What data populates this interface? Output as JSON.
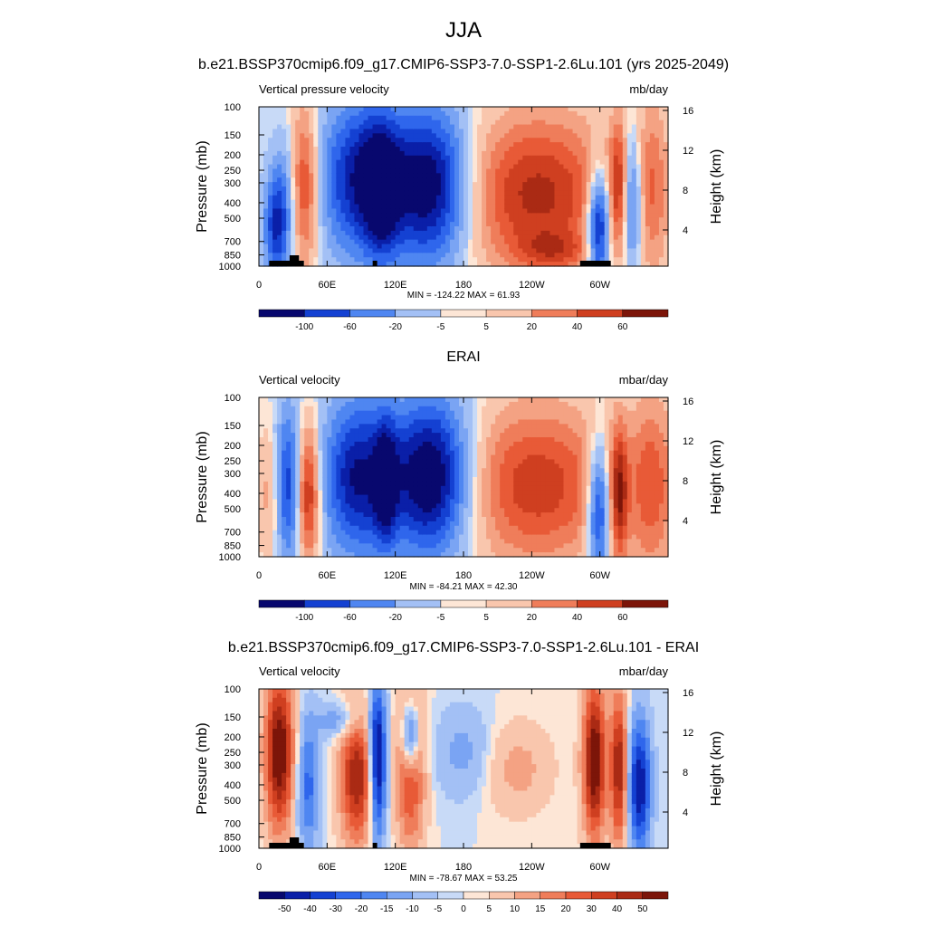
{
  "title": "JJA",
  "colors": {
    "diverging_20": [
      "#08086e",
      "#0a1fa8",
      "#1441d2",
      "#2f66ec",
      "#4f86f1",
      "#7aa4f3",
      "#a3c0f5",
      "#c8daf7",
      "#fde6d6",
      "#f9c6ad",
      "#f4a283",
      "#ef7d5a",
      "#e85a37",
      "#cf3f20",
      "#aa2a14",
      "#7c1509"
    ],
    "land": "#000000"
  },
  "panels": [
    {
      "title": "b.e21.BSSP370cmip6.f09_g17.CMIP6-SSP3-7.0-SSP1-2.6Lu.101 (yrs 2025-2049)",
      "left_label": "Vertical pressure velocity",
      "right_label": "mb/day",
      "minmax": "MIN = -124.22  MAX =  61.93",
      "colorbar_labels": [
        "-100",
        "-60",
        "-20",
        "-5",
        "5",
        "20",
        "40",
        "60"
      ]
    },
    {
      "title": "ERAI",
      "left_label": "Vertical velocity",
      "right_label": "mbar/day",
      "minmax": "MIN = -84.21  MAX = 42.30",
      "colorbar_labels": [
        "-100",
        "-60",
        "-20",
        "-5",
        "5",
        "20",
        "40",
        "60"
      ]
    },
    {
      "title": "b.e21.BSSP370cmip6.f09_g17.CMIP6-SSP3-7.0-SSP1-2.6Lu.101 - ERAI",
      "left_label": "Vertical velocity",
      "right_label": "mbar/day",
      "minmax": "MIN = -78.67  MAX =  53.25",
      "colorbar_labels": [
        "-50",
        "-40",
        "-30",
        "-20",
        "-15",
        "-10",
        "-5",
        "0",
        "5",
        "10",
        "15",
        "20",
        "30",
        "40",
        "50"
      ]
    }
  ],
  "chart_data": [
    {
      "type": "heatmap",
      "title": "b.e21.BSSP370cmip6.f09_g17.CMIP6-SSP3-7.0-SSP1-2.6Lu.101 (yrs 2025-2049)",
      "variable": "Vertical pressure velocity",
      "units": "mb/day",
      "ylabel": "Pressure (mb)",
      "y2label": "Height (km)",
      "x_ticks": [
        "0",
        "60E",
        "120E",
        "180",
        "120W",
        "60W"
      ],
      "y_ticks": [
        "100",
        "150",
        "200",
        "250",
        "300",
        "400",
        "500",
        "700",
        "850",
        "1000"
      ],
      "y2_ticks": [
        "16",
        "12",
        "8",
        "4"
      ],
      "min": -124.22,
      "max": 61.93,
      "levels": [
        -100,
        -60,
        -20,
        -5,
        5,
        20,
        40,
        60
      ]
    },
    {
      "type": "heatmap",
      "title": "ERAI",
      "variable": "Vertical velocity",
      "units": "mbar/day",
      "ylabel": "Pressure (mb)",
      "y2label": "Height (km)",
      "x_ticks": [
        "0",
        "60E",
        "120E",
        "180",
        "120W",
        "60W"
      ],
      "y_ticks": [
        "100",
        "150",
        "200",
        "250",
        "300",
        "400",
        "500",
        "700",
        "850",
        "1000"
      ],
      "y2_ticks": [
        "16",
        "12",
        "8",
        "4"
      ],
      "min": -84.21,
      "max": 42.3,
      "levels": [
        -100,
        -60,
        -20,
        -5,
        5,
        20,
        40,
        60
      ]
    },
    {
      "type": "heatmap",
      "title": "b.e21.BSSP370cmip6.f09_g17.CMIP6-SSP3-7.0-SSP1-2.6Lu.101 - ERAI",
      "variable": "Vertical velocity",
      "units": "mbar/day",
      "ylabel": "Pressure (mb)",
      "y2label": "Height (km)",
      "x_ticks": [
        "0",
        "60E",
        "120E",
        "180",
        "120W",
        "60W"
      ],
      "y_ticks": [
        "100",
        "150",
        "200",
        "250",
        "300",
        "400",
        "500",
        "700",
        "850",
        "1000"
      ],
      "y2_ticks": [
        "16",
        "12",
        "8",
        "4"
      ],
      "min": -78.67,
      "max": 53.25,
      "levels": [
        -50,
        -40,
        -30,
        -20,
        -15,
        -10,
        -5,
        0,
        5,
        10,
        15,
        20,
        30,
        40,
        50
      ]
    }
  ]
}
